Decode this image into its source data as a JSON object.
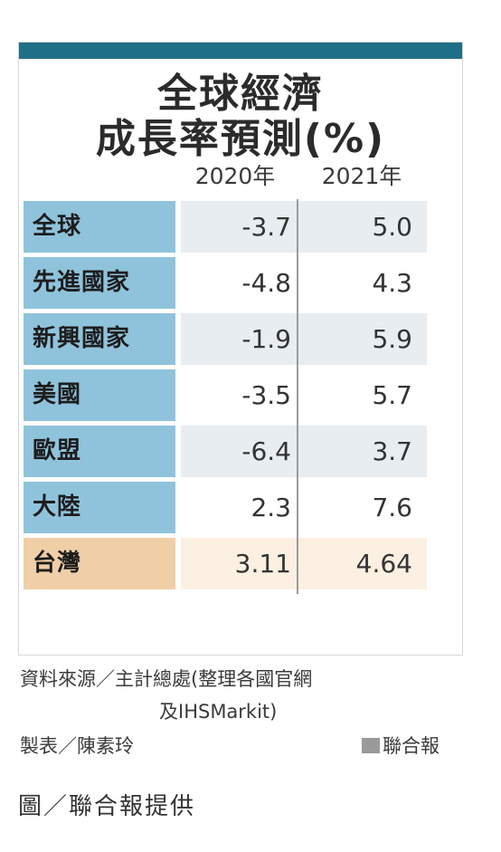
{
  "title": {
    "line1": "全球經濟",
    "line2": "成長率預測(%)"
  },
  "columns": [
    "2020年",
    "2021年"
  ],
  "rows": [
    {
      "label": "全球",
      "y2020": "-3.7",
      "y2021": "5.0"
    },
    {
      "label": "先進國家",
      "y2020": "-4.8",
      "y2021": "4.3"
    },
    {
      "label": "新興國家",
      "y2020": "-1.9",
      "y2021": "5.9"
    },
    {
      "label": "美國",
      "y2020": "-3.5",
      "y2021": "5.7"
    },
    {
      "label": "歐盟",
      "y2020": "-6.4",
      "y2021": "3.7"
    },
    {
      "label": "大陸",
      "y2020": "2.3",
      "y2021": "7.6"
    },
    {
      "label": "台灣",
      "y2020": "3.11",
      "y2021": "4.64"
    }
  ],
  "source": {
    "line1": "資料來源／主計總處(整理各國官網",
    "line2": "及IHSMarkit)"
  },
  "maker": "製表／陳素玲",
  "brand": "聯合報",
  "credit": "圖／聯合報提供",
  "colors": {
    "topbar": "#1f6f86",
    "label_blue": "#8fc3dc",
    "label_taiwan": "#f0cfa6",
    "shade": "#e7edf1"
  }
}
